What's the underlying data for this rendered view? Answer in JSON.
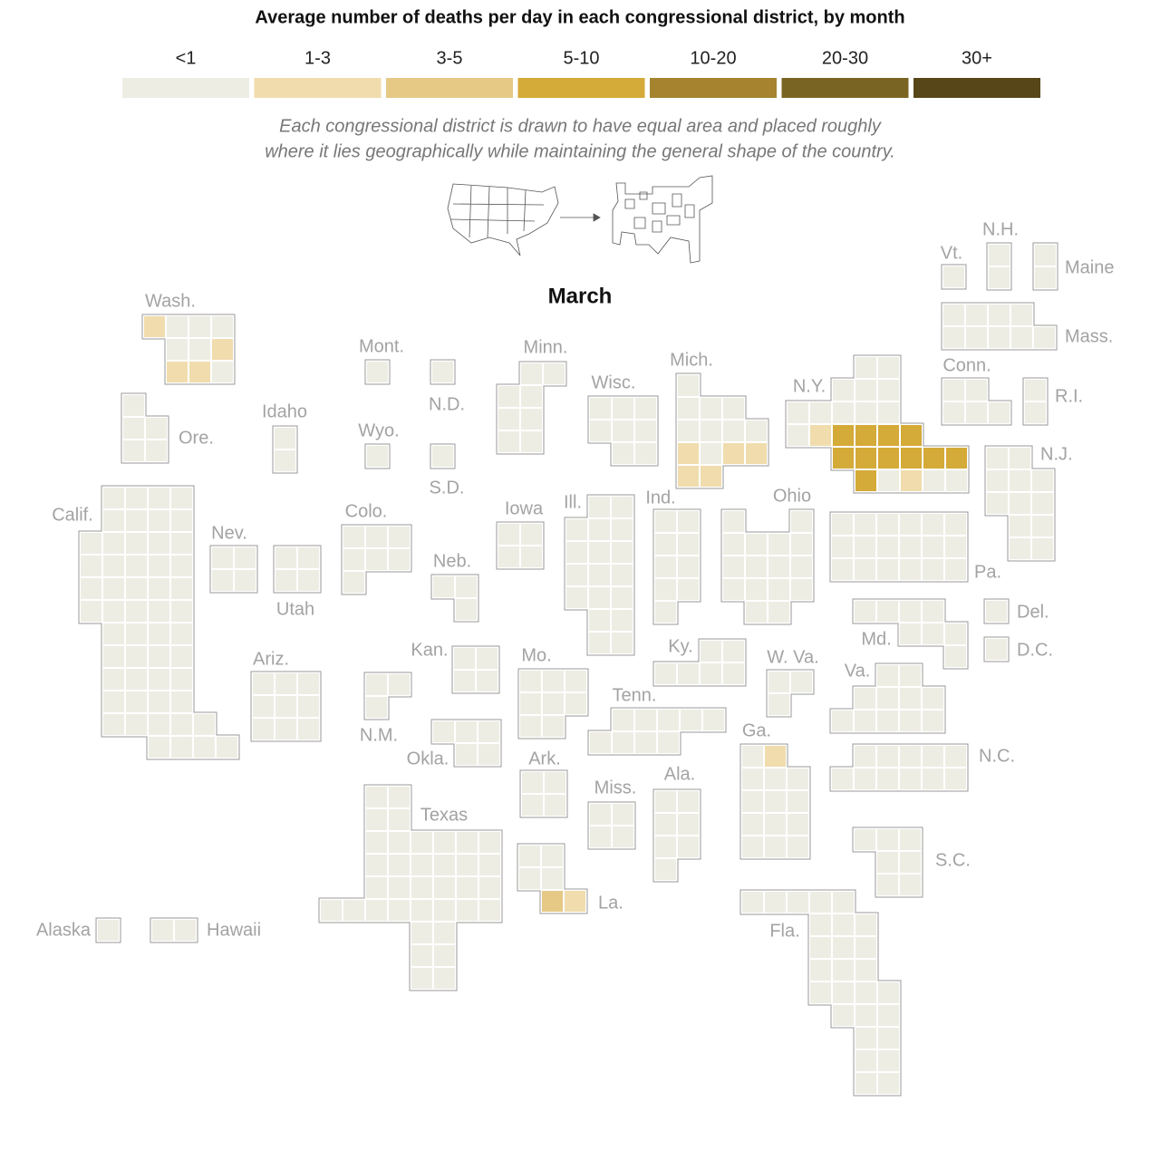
{
  "title": "Average number of deaths per day in each congressional district, by month",
  "note_lines": [
    "Each congressional district is drawn to have equal area and placed roughly",
    "where it lies geographically while maintaining the general shape of the country."
  ],
  "chart_data": {
    "type": "tilemap",
    "title": "March",
    "bins": [
      {
        "label": "<1",
        "color": "#eeede4"
      },
      {
        "label": "1-3",
        "color": "#f0dcad"
      },
      {
        "label": "3-5",
        "color": "#e5c985"
      },
      {
        "label": "5-10",
        "color": "#d4aa38"
      },
      {
        "label": "10-20",
        "color": "#a5832f"
      },
      {
        "label": "20-30",
        "color": "#7a6424"
      },
      {
        "label": "30+",
        "color": "#574618"
      }
    ],
    "states": [
      {
        "name": "Wash.",
        "districts": [
          "1-3",
          "<1",
          "<1",
          "<1",
          "<1",
          "<1",
          "1-3",
          "1-3",
          "1-3",
          "<1"
        ]
      },
      {
        "name": "Ore.",
        "districts": [
          "<1",
          "<1",
          "<1",
          "<1",
          "<1"
        ]
      },
      {
        "name": "Calif.",
        "districts": [
          "<1",
          "<1",
          "<1",
          "<1",
          "<1",
          "<1",
          "<1",
          "<1",
          "<1",
          "<1",
          "<1",
          "<1",
          "<1",
          "<1",
          "<1",
          "<1",
          "<1",
          "<1",
          "<1",
          "<1",
          "<1",
          "<1",
          "<1",
          "<1",
          "<1",
          "<1",
          "<1",
          "<1",
          "<1",
          "<1",
          "<1",
          "<1",
          "<1",
          "<1",
          "<1",
          "<1",
          "<1",
          "<1",
          "<1",
          "<1",
          "<1",
          "<1",
          "<1",
          "<1",
          "<1",
          "<1",
          "<1",
          "<1",
          "<1",
          "<1",
          "<1",
          "<1",
          "<1"
        ]
      },
      {
        "name": "Idaho",
        "districts": [
          "<1",
          "<1"
        ]
      },
      {
        "name": "Nev.",
        "districts": [
          "<1",
          "<1",
          "<1",
          "<1"
        ]
      },
      {
        "name": "Utah",
        "districts": [
          "<1",
          "<1",
          "<1",
          "<1"
        ]
      },
      {
        "name": "Ariz.",
        "districts": [
          "<1",
          "<1",
          "<1",
          "<1",
          "<1",
          "<1",
          "<1",
          "<1",
          "<1"
        ]
      },
      {
        "name": "Mont.",
        "districts": [
          "<1"
        ]
      },
      {
        "name": "Wyo.",
        "districts": [
          "<1"
        ]
      },
      {
        "name": "N.D.",
        "districts": [
          "<1"
        ]
      },
      {
        "name": "S.D.",
        "districts": [
          "<1"
        ]
      },
      {
        "name": "Colo.",
        "districts": [
          "<1",
          "<1",
          "<1",
          "<1",
          "<1",
          "<1",
          "<1"
        ]
      },
      {
        "name": "Neb.",
        "districts": [
          "<1",
          "<1",
          "<1"
        ]
      },
      {
        "name": "Kan.",
        "districts": [
          "<1",
          "<1",
          "<1",
          "<1"
        ]
      },
      {
        "name": "N.M.",
        "districts": [
          "<1",
          "<1",
          "<1"
        ]
      },
      {
        "name": "Okla.",
        "districts": [
          "<1",
          "<1",
          "<1",
          "<1",
          "<1"
        ]
      },
      {
        "name": "Texas",
        "districts": [
          "<1",
          "<1",
          "<1",
          "<1",
          "<1",
          "<1",
          "<1",
          "<1",
          "<1",
          "<1",
          "<1",
          "<1",
          "<1",
          "<1",
          "<1",
          "<1",
          "<1",
          "<1",
          "<1",
          "<1",
          "<1",
          "<1",
          "<1",
          "<1",
          "<1",
          "<1",
          "<1",
          "<1",
          "<1",
          "<1",
          "<1",
          "<1",
          "<1",
          "<1",
          "<1",
          "<1"
        ]
      },
      {
        "name": "Minn.",
        "districts": [
          "<1",
          "<1",
          "<1",
          "<1",
          "<1",
          "<1",
          "<1",
          "<1"
        ]
      },
      {
        "name": "Wisc.",
        "districts": [
          "<1",
          "<1",
          "<1",
          "<1",
          "<1",
          "<1",
          "<1",
          "<1"
        ]
      },
      {
        "name": "Iowa",
        "districts": [
          "<1",
          "<1",
          "<1",
          "<1"
        ]
      },
      {
        "name": "Ill.",
        "districts": [
          "<1",
          "<1",
          "<1",
          "<1",
          "<1",
          "<1",
          "<1",
          "<1",
          "<1",
          "<1",
          "<1",
          "<1",
          "<1",
          "<1",
          "<1",
          "<1",
          "<1",
          "<1"
        ]
      },
      {
        "name": "Mich.",
        "districts": [
          "<1",
          "<1",
          "<1",
          "<1",
          "<1",
          "<1",
          "<1",
          "<1",
          "1-3",
          "<1",
          "1-3",
          "1-3",
          "1-3",
          "1-3"
        ]
      },
      {
        "name": "Ind.",
        "districts": [
          "<1",
          "<1",
          "<1",
          "<1",
          "<1",
          "<1",
          "<1",
          "<1",
          "<1"
        ]
      },
      {
        "name": "Ohio",
        "districts": [
          "<1",
          "<1",
          "<1",
          "<1",
          "<1",
          "<1",
          "<1",
          "<1",
          "<1",
          "<1",
          "<1",
          "<1",
          "<1",
          "<1",
          "<1",
          "<1"
        ]
      },
      {
        "name": "Ky.",
        "districts": [
          "<1",
          "<1",
          "<1",
          "<1",
          "<1",
          "<1"
        ]
      },
      {
        "name": "Tenn.",
        "districts": [
          "<1",
          "<1",
          "<1",
          "<1",
          "<1",
          "<1",
          "<1",
          "<1",
          "<1"
        ]
      },
      {
        "name": "W. Va.",
        "districts": [
          "<1",
          "<1",
          "<1"
        ]
      },
      {
        "name": "Pa.",
        "districts": [
          "<1",
          "<1",
          "<1",
          "<1",
          "<1",
          "<1",
          "<1",
          "<1",
          "<1",
          "<1",
          "<1",
          "<1",
          "<1",
          "<1",
          "<1",
          "<1",
          "<1",
          "<1"
        ]
      },
      {
        "name": "N.Y.",
        "districts": [
          "<1",
          "<1",
          "<1",
          "<1",
          "<1",
          "<1",
          "<1",
          "<1",
          "<1",
          "<1",
          "<1",
          "1-3",
          "5-10",
          "5-10",
          "5-10",
          "5-10",
          "5-10",
          "5-10",
          "5-10",
          "5-10",
          "5-10",
          "5-10",
          "5-10",
          "<1",
          "1-3",
          "<1",
          "<1"
        ]
      },
      {
        "name": "Vt.",
        "districts": [
          "<1"
        ]
      },
      {
        "name": "N.H.",
        "districts": [
          "<1",
          "<1"
        ]
      },
      {
        "name": "Maine",
        "districts": [
          "<1",
          "<1"
        ]
      },
      {
        "name": "Mass.",
        "districts": [
          "<1",
          "<1",
          "<1",
          "<1",
          "<1",
          "<1",
          "<1",
          "<1",
          "<1"
        ]
      },
      {
        "name": "Conn.",
        "districts": [
          "<1",
          "<1",
          "<1",
          "<1",
          "<1"
        ]
      },
      {
        "name": "R.I.",
        "districts": [
          "<1",
          "<1"
        ]
      },
      {
        "name": "N.J.",
        "districts": [
          "<1",
          "<1",
          "<1",
          "<1",
          "<1",
          "<1",
          "<1",
          "<1",
          "<1",
          "<1",
          "<1",
          "<1"
        ]
      },
      {
        "name": "Md.",
        "districts": [
          "<1",
          "<1",
          "<1",
          "<1",
          "<1",
          "<1",
          "<1",
          "<1"
        ]
      },
      {
        "name": "Del.",
        "districts": [
          "<1"
        ]
      },
      {
        "name": "D.C.",
        "districts": [
          "<1"
        ]
      },
      {
        "name": "Va.",
        "districts": [
          "<1",
          "<1",
          "<1",
          "<1",
          "<1",
          "<1",
          "<1",
          "<1",
          "<1",
          "<1",
          "<1"
        ]
      },
      {
        "name": "N.C.",
        "districts": [
          "<1",
          "<1",
          "<1",
          "<1",
          "<1",
          "<1",
          "<1",
          "<1",
          "<1",
          "<1",
          "<1"
        ]
      },
      {
        "name": "S.C.",
        "districts": [
          "<1",
          "<1",
          "<1",
          "<1",
          "<1",
          "<1",
          "<1"
        ]
      },
      {
        "name": "Ga.",
        "districts": [
          "<1",
          "1-3",
          "<1",
          "<1",
          "<1",
          "<1",
          "<1",
          "<1",
          "<1",
          "<1",
          "<1",
          "<1",
          "<1",
          "<1"
        ]
      },
      {
        "name": "Ala.",
        "districts": [
          "<1",
          "<1",
          "<1",
          "<1",
          "<1",
          "<1",
          "<1"
        ]
      },
      {
        "name": "Miss.",
        "districts": [
          "<1",
          "<1",
          "<1",
          "<1"
        ]
      },
      {
        "name": "Ark.",
        "districts": [
          "<1",
          "<1",
          "<1",
          "<1"
        ]
      },
      {
        "name": "Mo.",
        "districts": [
          "<1",
          "<1",
          "<1",
          "<1",
          "<1",
          "<1",
          "<1",
          "<1"
        ]
      },
      {
        "name": "La.",
        "districts": [
          "<1",
          "<1",
          "<1",
          "<1",
          "3-5",
          "1-3"
        ]
      },
      {
        "name": "Fla.",
        "districts": [
          "<1",
          "<1",
          "<1",
          "<1",
          "<1",
          "<1",
          "<1",
          "<1",
          "<1",
          "<1",
          "<1",
          "<1",
          "<1",
          "<1",
          "<1",
          "<1",
          "<1",
          "<1",
          "<1",
          "<1",
          "<1",
          "<1",
          "<1",
          "<1",
          "<1",
          "<1",
          "<1"
        ]
      },
      {
        "name": "Alaska",
        "districts": [
          "<1"
        ]
      },
      {
        "name": "Hawaii",
        "districts": [
          "<1",
          "<1"
        ]
      }
    ]
  }
}
